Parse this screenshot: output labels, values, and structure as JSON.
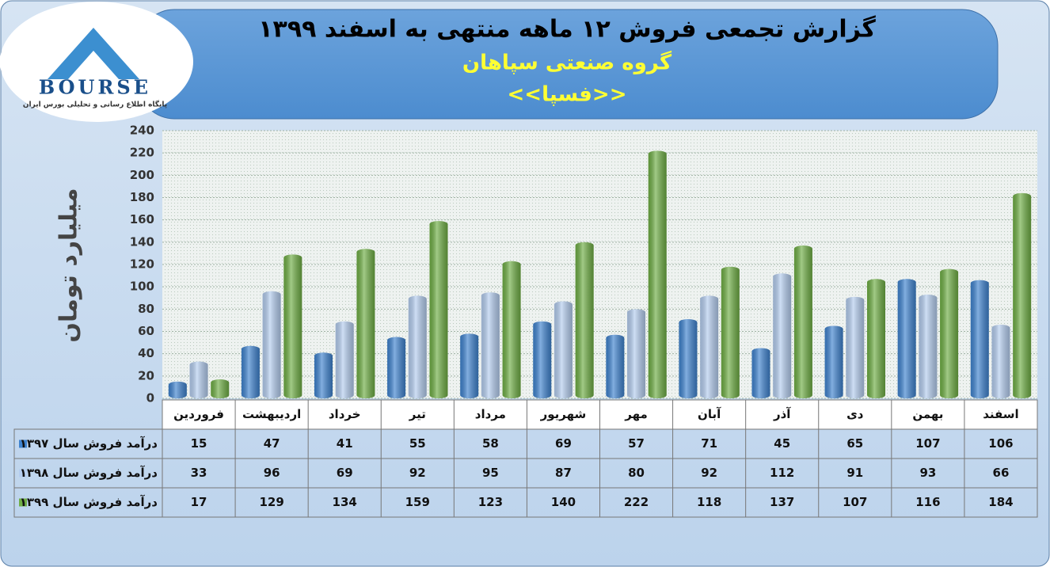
{
  "chart_data": {
    "type": "bar",
    "title": "گزارش تجمعی فروش ۱۲ ماهه منتهی به اسفند ۱۳۹۹",
    "subtitle": "گروه صنعتی سپاهان",
    "symbol": "<<فسپا>>",
    "y_label": "میلیارد تومان",
    "categories": [
      "فروردین",
      "اردیبهشت",
      "خرداد",
      "تیر",
      "مرداد",
      "شهریور",
      "مهر",
      "آبان",
      "آذر",
      "دی",
      "بهمن",
      "اسفند"
    ],
    "series": [
      {
        "name": "درآمد فروش سال ۱۳۹۷",
        "color": "#3f83cf",
        "values": [
          15,
          47,
          41,
          55,
          58,
          69,
          57,
          71,
          45,
          65,
          107,
          106
        ]
      },
      {
        "name": "درآمد فروش سال ۱۳۹۸",
        "color": "#b4cdef",
        "values": [
          33,
          96,
          69,
          92,
          95,
          87,
          80,
          92,
          112,
          91,
          93,
          66
        ]
      },
      {
        "name": "درآمد فروش سال ۱۳۹۹",
        "color": "#6fae45",
        "values": [
          17,
          129,
          134,
          159,
          123,
          140,
          222,
          118,
          137,
          107,
          116,
          184
        ]
      }
    ],
    "ylim": [
      0,
      240
    ],
    "yticks": [
      0,
      20,
      40,
      60,
      80,
      100,
      120,
      140,
      160,
      180,
      200,
      220,
      240
    ],
    "grid": true
  },
  "logo": {
    "name": "BOURSE",
    "tagline": "پایگاه اطلاع رسانی و تحلیلی بورس ایران"
  }
}
